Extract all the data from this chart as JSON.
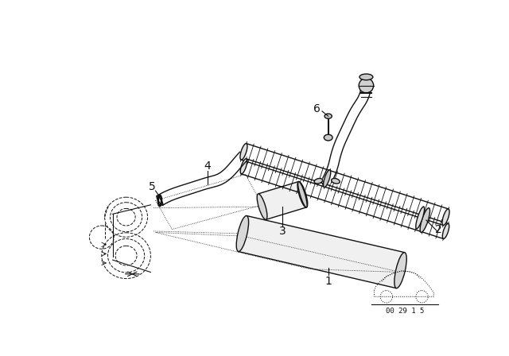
{
  "bg_color": "#ffffff",
  "line_color": "#111111",
  "fig_width": 6.4,
  "fig_height": 4.48,
  "dpi": 100,
  "diagram_number": "00 29 1 5"
}
